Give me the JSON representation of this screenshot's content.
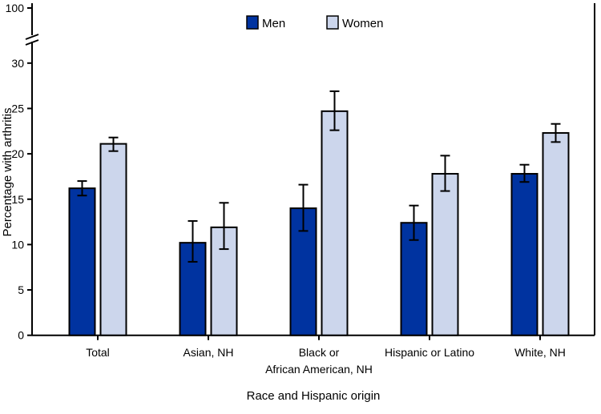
{
  "chart_data": {
    "type": "bar",
    "xlabel": "Race and Hispanic origin",
    "ylabel": "Percentage with arthritis",
    "ylim": [
      0,
      30
    ],
    "y_break_top_label": "100",
    "yticks": [
      0,
      5,
      10,
      15,
      20,
      25,
      30
    ],
    "categories": [
      [
        "Total"
      ],
      [
        "Asian, NH"
      ],
      [
        "Black or",
        "African American, NH"
      ],
      [
        "Hispanic or Latino"
      ],
      [
        "White, NH"
      ]
    ],
    "legend_position": "top-center",
    "grid": false,
    "series": [
      {
        "name": "Men",
        "color": "#0033a0",
        "values": [
          16.2,
          10.2,
          14.0,
          12.4,
          17.8
        ],
        "ci_low": [
          15.4,
          8.1,
          11.5,
          10.5,
          16.9
        ],
        "ci_high": [
          17.0,
          12.6,
          16.6,
          14.3,
          18.8
        ]
      },
      {
        "name": "Women",
        "color": "#ccd6ec",
        "values": [
          21.1,
          11.9,
          24.7,
          17.8,
          22.3
        ],
        "ci_low": [
          20.3,
          9.5,
          22.6,
          15.9,
          21.3
        ],
        "ci_high": [
          21.8,
          14.6,
          26.9,
          19.8,
          23.3
        ]
      }
    ]
  }
}
